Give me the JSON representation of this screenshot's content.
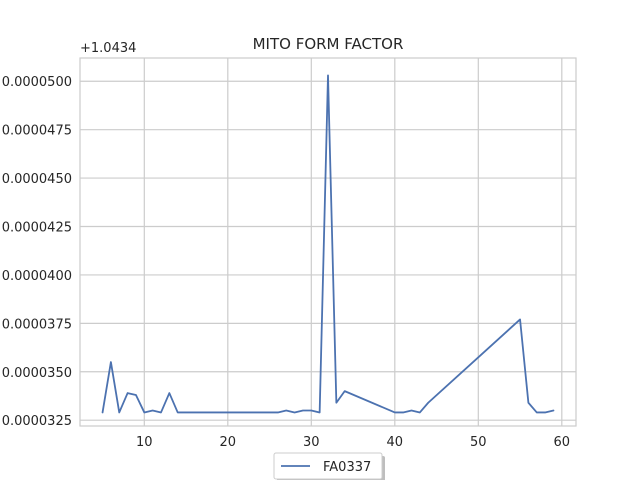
{
  "chart_data": {
    "type": "line",
    "title": "MITO FORM FACTOR",
    "xlabel": "",
    "ylabel": "",
    "y_offset_label": "+1.0434",
    "xlim": [
      2.3,
      61.7
    ],
    "ylim": [
      3.22e-05,
      5.12e-05
    ],
    "x_ticks": [
      10,
      20,
      30,
      40,
      50,
      60
    ],
    "x_tick_labels": [
      "10",
      "20",
      "30",
      "40",
      "50",
      "60"
    ],
    "y_ticks": [
      3.25e-05,
      3.5e-05,
      3.75e-05,
      4e-05,
      4.25e-05,
      4.5e-05,
      4.75e-05,
      5e-05
    ],
    "y_tick_labels": [
      "0.0000325",
      "0.0000350",
      "0.0000375",
      "0.0000400",
      "0.0000425",
      "0.0000450",
      "0.0000475",
      "0.0000500"
    ],
    "grid": true,
    "legend_position": "bottom-center",
    "series": [
      {
        "name": "FA0337",
        "color": "#4c72b0",
        "x": [
          5,
          6,
          7,
          8,
          9,
          10,
          11,
          12,
          13,
          14,
          15,
          16,
          17,
          18,
          19,
          20,
          21,
          22,
          23,
          24,
          25,
          26,
          27,
          28,
          29,
          30,
          31,
          32,
          33,
          34,
          40,
          41,
          42,
          43,
          44,
          55,
          56,
          57,
          58,
          59
        ],
        "y": [
          3.29e-05,
          3.55e-05,
          3.29e-05,
          3.39e-05,
          3.38e-05,
          3.29e-05,
          3.3e-05,
          3.29e-05,
          3.39e-05,
          3.29e-05,
          3.29e-05,
          3.29e-05,
          3.29e-05,
          3.29e-05,
          3.29e-05,
          3.29e-05,
          3.29e-05,
          3.29e-05,
          3.29e-05,
          3.29e-05,
          3.29e-05,
          3.29e-05,
          3.3e-05,
          3.29e-05,
          3.3e-05,
          3.3e-05,
          3.29e-05,
          5.03e-05,
          3.34e-05,
          3.4e-05,
          3.29e-05,
          3.29e-05,
          3.3e-05,
          3.29e-05,
          3.34e-05,
          3.77e-05,
          3.34e-05,
          3.29e-05,
          3.29e-05,
          3.3e-05
        ]
      }
    ]
  }
}
